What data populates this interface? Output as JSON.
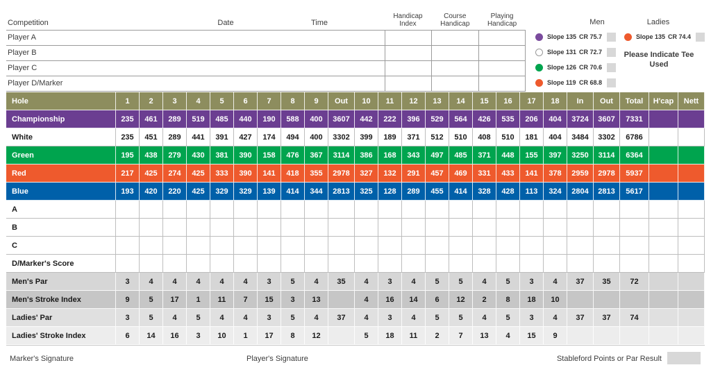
{
  "info": {
    "competition_label": "Competition",
    "date_label": "Date",
    "time_label": "Time",
    "col_headers": [
      "Handicap Index",
      "Course Handicap",
      "Playing Handicap"
    ],
    "players": [
      "Player A",
      "Player B",
      "Player C",
      "Player D/Marker"
    ]
  },
  "legend": {
    "men_label": "Men",
    "ladies_label": "Ladies",
    "note": "Please Indicate Tee Used",
    "men_tees": [
      {
        "tee": "purple-tee",
        "color": "#7a4b9d",
        "slope": "Slope 135",
        "cr": "CR 75.7"
      },
      {
        "tee": "white-tee",
        "color": "#ffffff",
        "slope": "Slope 131",
        "cr": "CR 72.7"
      },
      {
        "tee": "green-tee",
        "color": "#00a44e",
        "slope": "Slope 126",
        "cr": "CR 70.6"
      },
      {
        "tee": "red-tee",
        "color": "#ee5a2d",
        "slope": "Slope 119",
        "cr": "CR 68.8"
      }
    ],
    "ladies_tees": [
      {
        "tee": "red-tee",
        "color": "#ee5a2d",
        "slope": "Slope 135",
        "cr": "CR 74.4"
      }
    ]
  },
  "colors": {
    "olive": "#8d8d5e",
    "purple": "#6b3e91",
    "white": "#ffffff",
    "green": "#00a44e",
    "red": "#ee5a2d",
    "blue": "#0060a9",
    "gray_mens_par": "#d6d6d6",
    "gray_mens_si": "#c6c6c6",
    "gray_ladies_par": "#e0e0e0",
    "gray_ladies_si": "#ededed"
  },
  "table": {
    "columns": [
      "Hole",
      "1",
      "2",
      "3",
      "4",
      "5",
      "6",
      "7",
      "8",
      "9",
      "Out",
      "10",
      "11",
      "12",
      "13",
      "14",
      "15",
      "16",
      "17",
      "18",
      "In",
      "Out",
      "Total",
      "H'cap",
      "Nett"
    ],
    "rows": [
      {
        "id": "championship",
        "label": "Championship",
        "bg": "purple",
        "fg": "#ffffff",
        "borders": "white",
        "editable": false,
        "values": [
          "235",
          "461",
          "289",
          "519",
          "485",
          "440",
          "190",
          "588",
          "400",
          "3607",
          "442",
          "222",
          "396",
          "529",
          "564",
          "426",
          "535",
          "206",
          "404",
          "3724",
          "3607",
          "7331",
          "",
          ""
        ]
      },
      {
        "id": "white-tee",
        "label": "White",
        "bg": "white",
        "fg": "#1a1a1a",
        "borders": "gray",
        "editable": false,
        "values": [
          "235",
          "451",
          "289",
          "441",
          "391",
          "427",
          "174",
          "494",
          "400",
          "3302",
          "399",
          "189",
          "371",
          "512",
          "510",
          "408",
          "510",
          "181",
          "404",
          "3484",
          "3302",
          "6786",
          "",
          ""
        ]
      },
      {
        "id": "green-tee",
        "label": "Green",
        "bg": "green",
        "fg": "#ffffff",
        "borders": "white",
        "editable": false,
        "values": [
          "195",
          "438",
          "279",
          "430",
          "381",
          "390",
          "158",
          "476",
          "367",
          "3114",
          "386",
          "168",
          "343",
          "497",
          "485",
          "371",
          "448",
          "155",
          "397",
          "3250",
          "3114",
          "6364",
          "",
          ""
        ]
      },
      {
        "id": "red-tee",
        "label": "Red",
        "bg": "red",
        "fg": "#ffffff",
        "borders": "white",
        "editable": false,
        "values": [
          "217",
          "425",
          "274",
          "425",
          "333",
          "390",
          "141",
          "418",
          "355",
          "2978",
          "327",
          "132",
          "291",
          "457",
          "469",
          "331",
          "433",
          "141",
          "378",
          "2959",
          "2978",
          "5937",
          "",
          ""
        ]
      },
      {
        "id": "blue-tee",
        "label": "Blue",
        "bg": "blue",
        "fg": "#ffffff",
        "borders": "white",
        "editable": false,
        "values": [
          "193",
          "420",
          "220",
          "425",
          "329",
          "329",
          "139",
          "414",
          "344",
          "2813",
          "325",
          "128",
          "289",
          "455",
          "414",
          "328",
          "428",
          "113",
          "324",
          "2804",
          "2813",
          "5617",
          "",
          ""
        ]
      },
      {
        "id": "score-a",
        "label": "A",
        "bg": "white",
        "fg": "#1a1a1a",
        "borders": "gray",
        "editable": true,
        "values": []
      },
      {
        "id": "score-b",
        "label": "B",
        "bg": "white",
        "fg": "#1a1a1a",
        "borders": "gray",
        "editable": true,
        "values": []
      },
      {
        "id": "score-c",
        "label": "C",
        "bg": "white",
        "fg": "#1a1a1a",
        "borders": "gray",
        "editable": true,
        "values": []
      },
      {
        "id": "score-d-marker",
        "label": "D/Marker's Score",
        "bg": "white",
        "fg": "#1a1a1a",
        "borders": "gray",
        "editable": true,
        "values": []
      },
      {
        "id": "mens-par",
        "label": "Men's Par",
        "bg": "gray_mens_par",
        "fg": "#1a1a1a",
        "borders": "white",
        "editable": false,
        "values": [
          "3",
          "4",
          "4",
          "4",
          "4",
          "4",
          "3",
          "5",
          "4",
          "35",
          "4",
          "3",
          "4",
          "5",
          "5",
          "4",
          "5",
          "3",
          "4",
          "37",
          "35",
          "72",
          "",
          ""
        ]
      },
      {
        "id": "mens-stroke-index",
        "label": "Men's Stroke Index",
        "bg": "gray_mens_si",
        "fg": "#1a1a1a",
        "borders": "white",
        "editable": false,
        "values": [
          "9",
          "5",
          "17",
          "1",
          "11",
          "7",
          "15",
          "3",
          "13",
          "",
          "4",
          "16",
          "14",
          "6",
          "12",
          "2",
          "8",
          "18",
          "10",
          "",
          "",
          "",
          "",
          ""
        ]
      },
      {
        "id": "ladies-par",
        "label": "Ladies' Par",
        "bg": "gray_ladies_par",
        "fg": "#1a1a1a",
        "borders": "white",
        "editable": false,
        "values": [
          "3",
          "5",
          "4",
          "5",
          "4",
          "4",
          "3",
          "5",
          "4",
          "37",
          "4",
          "3",
          "4",
          "5",
          "5",
          "4",
          "5",
          "3",
          "4",
          "37",
          "37",
          "74",
          "",
          ""
        ]
      },
      {
        "id": "ladies-stroke-index",
        "label": "Ladies' Stroke Index",
        "bg": "gray_ladies_si",
        "fg": "#1a1a1a",
        "borders": "white",
        "editable": false,
        "values": [
          "6",
          "14",
          "16",
          "3",
          "10",
          "1",
          "17",
          "8",
          "12",
          "",
          "5",
          "18",
          "11",
          "2",
          "7",
          "13",
          "4",
          "15",
          "9",
          "",
          "",
          "",
          "",
          ""
        ]
      }
    ]
  },
  "footer": {
    "markers_signature": "Marker's Signature",
    "players_signature": "Player's Signature",
    "stableford": "Stableford Points or Par Result"
  }
}
